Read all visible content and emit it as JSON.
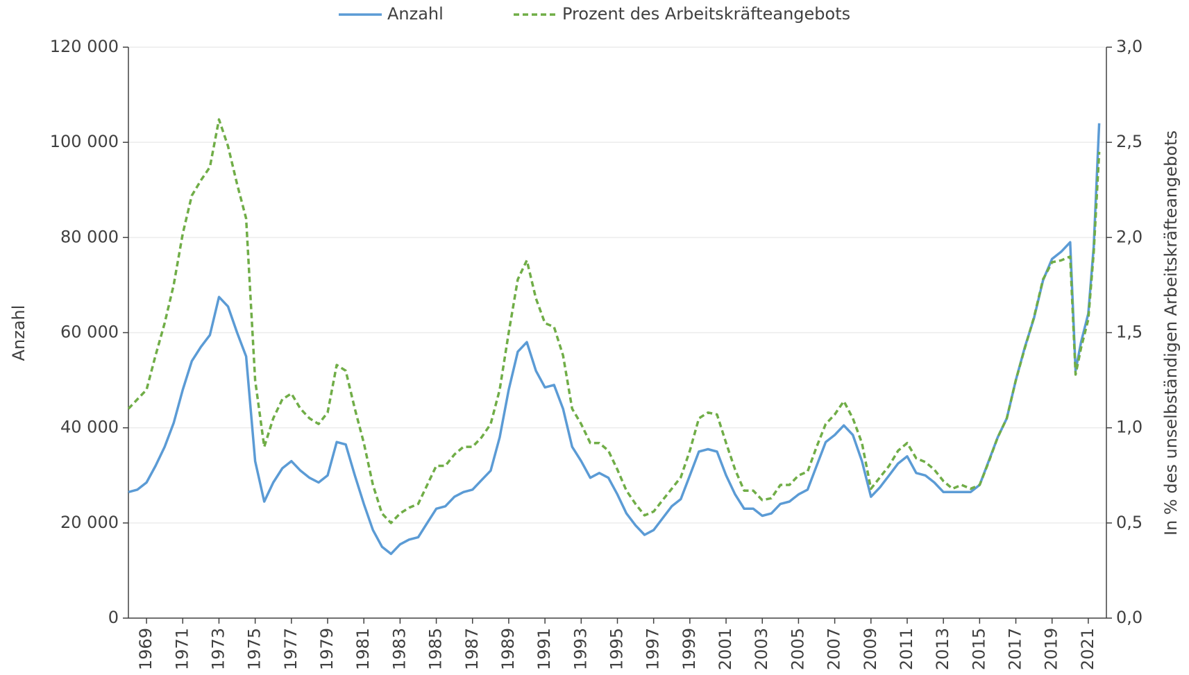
{
  "chart_data": {
    "type": "line",
    "ylabel": "Anzahl",
    "y2label": "In % des unselbständigen Arbeitskräfteangebots",
    "x": [
      1968,
      1968.5,
      1969,
      1969.5,
      1970,
      1970.5,
      1971,
      1971.5,
      1972,
      1972.5,
      1973,
      1973.5,
      1974,
      1974.5,
      1975,
      1975.5,
      1976,
      1976.5,
      1977,
      1977.5,
      1978,
      1978.5,
      1979,
      1979.5,
      1980,
      1980.5,
      1981,
      1981.5,
      1982,
      1982.5,
      1983,
      1983.5,
      1984,
      1984.5,
      1985,
      1985.5,
      1986,
      1986.5,
      1987,
      1987.5,
      1988,
      1988.5,
      1989,
      1989.5,
      1990,
      1990.5,
      1991,
      1991.5,
      1992,
      1992.5,
      1993,
      1993.5,
      1994,
      1994.5,
      1995,
      1995.5,
      1996,
      1996.5,
      1997,
      1997.5,
      1998,
      1998.5,
      1999,
      1999.5,
      2000,
      2000.5,
      2001,
      2001.5,
      2002,
      2002.5,
      2003,
      2003.5,
      2004,
      2004.5,
      2005,
      2005.5,
      2006,
      2006.5,
      2007,
      2007.5,
      2008,
      2008.5,
      2009,
      2009.5,
      2010,
      2010.5,
      2011,
      2011.5,
      2012,
      2012.5,
      2013,
      2013.5,
      2014,
      2014.5,
      2015,
      2015.5,
      2016,
      2016.5,
      2017,
      2017.5,
      2018,
      2018.5,
      2019,
      2019.5,
      2020,
      2020.3,
      2020.6,
      2021,
      2021.3,
      2021.6
    ],
    "series": [
      {
        "name": "Anzahl",
        "color": "#5b9bd5",
        "dash": false,
        "values": [
          26500,
          27000,
          28500,
          32000,
          36000,
          41000,
          48000,
          54000,
          57000,
          59500,
          67500,
          65500,
          60000,
          55000,
          33000,
          24500,
          28500,
          31500,
          33000,
          31000,
          29500,
          28500,
          30000,
          37000,
          36500,
          30000,
          24000,
          18500,
          15000,
          13500,
          15500,
          16500,
          17000,
          20000,
          23000,
          23500,
          25500,
          26500,
          27000,
          29000,
          31000,
          38000,
          48000,
          56000,
          58000,
          52000,
          48500,
          49000,
          44000,
          36000,
          33000,
          29500,
          30500,
          29500,
          26000,
          22000,
          19500,
          17500,
          18500,
          21000,
          23500,
          25000,
          30000,
          35000,
          35500,
          35000,
          30000,
          26000,
          23000,
          23000,
          21500,
          22000,
          24000,
          24500,
          26000,
          27000,
          32000,
          37000,
          38500,
          40500,
          38500,
          33000,
          25500,
          27500,
          30000,
          32500,
          34000,
          30500,
          30000,
          28500,
          26500,
          26500,
          26500,
          26500,
          28000,
          33000,
          38000,
          42000,
          50000,
          57000,
          63000,
          71000,
          75500,
          77000,
          79000,
          52000,
          58000,
          64000,
          78000,
          104000
        ]
      },
      {
        "name": "Prozent des Arbeitskräfteangebots",
        "color": "#70ad47",
        "dash": true,
        "axis": "y2",
        "values": [
          1.1,
          1.15,
          1.2,
          1.38,
          1.55,
          1.75,
          2.02,
          2.22,
          2.3,
          2.37,
          2.62,
          2.48,
          2.28,
          2.1,
          1.25,
          0.9,
          1.05,
          1.15,
          1.18,
          1.1,
          1.05,
          1.02,
          1.08,
          1.33,
          1.3,
          1.1,
          0.92,
          0.7,
          0.55,
          0.5,
          0.55,
          0.58,
          0.6,
          0.7,
          0.8,
          0.8,
          0.86,
          0.9,
          0.9,
          0.95,
          1.02,
          1.2,
          1.5,
          1.78,
          1.88,
          1.68,
          1.55,
          1.53,
          1.38,
          1.1,
          1.02,
          0.92,
          0.92,
          0.88,
          0.78,
          0.67,
          0.6,
          0.54,
          0.56,
          0.62,
          0.68,
          0.74,
          0.88,
          1.05,
          1.08,
          1.07,
          0.92,
          0.78,
          0.67,
          0.67,
          0.62,
          0.63,
          0.7,
          0.7,
          0.75,
          0.77,
          0.9,
          1.02,
          1.07,
          1.14,
          1.05,
          0.92,
          0.68,
          0.74,
          0.8,
          0.88,
          0.92,
          0.84,
          0.82,
          0.78,
          0.72,
          0.68,
          0.7,
          0.68,
          0.7,
          0.82,
          0.95,
          1.05,
          1.25,
          1.42,
          1.58,
          1.78,
          1.87,
          1.88,
          1.9,
          1.28,
          1.42,
          1.57,
          1.92,
          2.45
        ]
      }
    ],
    "xlim": [
      1968,
      2022
    ],
    "xticks": [
      1969,
      1971,
      1973,
      1975,
      1977,
      1979,
      1981,
      1983,
      1985,
      1987,
      1989,
      1991,
      1993,
      1995,
      1997,
      1999,
      2001,
      2003,
      2005,
      2007,
      2009,
      2011,
      2013,
      2015,
      2017,
      2019,
      2021
    ],
    "ylim": [
      0,
      120000
    ],
    "yticks": [
      0,
      {
        "value": 20000,
        "label": "20 000"
      },
      {
        "value": 40000,
        "label": "40 000"
      },
      {
        "value": 60000,
        "label": "60 000"
      },
      {
        "value": 80000,
        "label": "80 000"
      },
      {
        "value": 100000,
        "label": "100 000"
      },
      {
        "value": 120000,
        "label": "120 000"
      }
    ],
    "y2lim": [
      0,
      3
    ],
    "y2ticks": [
      {
        "value": 0,
        "label": "0,0"
      },
      {
        "value": 0.5,
        "label": "0,5"
      },
      {
        "value": 1,
        "label": "1,0"
      },
      {
        "value": 1.5,
        "label": "1,5"
      },
      {
        "value": 2,
        "label": "2,0"
      },
      {
        "value": 2.5,
        "label": "2,5"
      },
      {
        "value": 3,
        "label": "3,0"
      }
    ],
    "grid": true,
    "legend": "top"
  }
}
